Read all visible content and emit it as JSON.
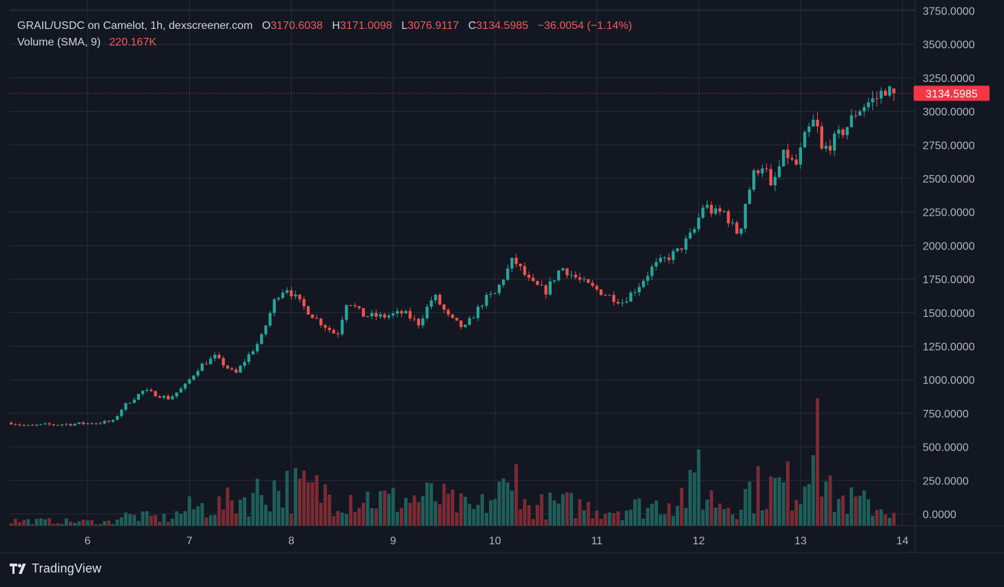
{
  "header": {
    "symbol": "GRAIL/USDC on Camelot, 1h, dexscreener.com",
    "ohlc": [
      {
        "key": "O",
        "value": "3170.6038"
      },
      {
        "key": "H",
        "value": "3171.0098"
      },
      {
        "key": "L",
        "value": "3076.9117"
      },
      {
        "key": "C",
        "value": "3134.5985"
      }
    ],
    "change": "−36.0054 (−1.14%)",
    "volume_label": "Volume (SMA, 9)",
    "volume_value": "220.167K"
  },
  "colors": {
    "background": "#131722",
    "grid": "#2a2e39",
    "up": "#26a69a",
    "down": "#ef5350",
    "up_volume": "#1f5f5a",
    "down_volume": "#7a2b33",
    "last_price": "#f23645"
  },
  "branding": {
    "logo_icon": "tradingview-logo-icon",
    "name": "TradingView"
  },
  "chart_data": {
    "type": "candlestick",
    "interval": "1h",
    "price_axis": {
      "ticks": [
        "3750.0000",
        "3500.0000",
        "3250.0000",
        "3000.0000",
        "2750.0000",
        "2500.0000",
        "2250.0000",
        "2000.0000",
        "1750.0000",
        "1500.0000",
        "1250.0000",
        "1000.0000",
        "750.0000",
        "500.0000",
        "250.0000",
        "0.0000"
      ],
      "range": [
        0,
        3750
      ]
    },
    "time_axis": {
      "ticks": [
        "6",
        "7",
        "8",
        "9",
        "10",
        "11",
        "12",
        "13",
        "14"
      ],
      "start_day": 5.25,
      "end_day": 13.9
    },
    "last_price": {
      "value": 3134.5985,
      "label": "3134.5985"
    },
    "volume_sma_length": 9,
    "price_anchors": [
      [
        5.25,
        680
      ],
      [
        5.4,
        655
      ],
      [
        5.6,
        665
      ],
      [
        5.85,
        670
      ],
      [
        6.1,
        680
      ],
      [
        6.25,
        690
      ],
      [
        6.35,
        800
      ],
      [
        6.55,
        920
      ],
      [
        6.8,
        860
      ],
      [
        6.95,
        950
      ],
      [
        7.1,
        1100
      ],
      [
        7.25,
        1170
      ],
      [
        7.45,
        1040
      ],
      [
        7.55,
        1150
      ],
      [
        7.7,
        1300
      ],
      [
        7.85,
        1620
      ],
      [
        7.95,
        1690
      ],
      [
        8.1,
        1560
      ],
      [
        8.25,
        1450
      ],
      [
        8.45,
        1330
      ],
      [
        8.55,
        1600
      ],
      [
        8.7,
        1480
      ],
      [
        8.9,
        1470
      ],
      [
        9.1,
        1500
      ],
      [
        9.25,
        1420
      ],
      [
        9.4,
        1630
      ],
      [
        9.55,
        1460
      ],
      [
        9.7,
        1380
      ],
      [
        9.9,
        1600
      ],
      [
        10.0,
        1640
      ],
      [
        10.18,
        1900
      ],
      [
        10.35,
        1720
      ],
      [
        10.5,
        1660
      ],
      [
        10.65,
        1840
      ],
      [
        10.85,
        1730
      ],
      [
        11.05,
        1650
      ],
      [
        11.25,
        1580
      ],
      [
        11.4,
        1690
      ],
      [
        11.55,
        1840
      ],
      [
        11.8,
        1960
      ],
      [
        11.95,
        2100
      ],
      [
        12.05,
        2310
      ],
      [
        12.15,
        2240
      ],
      [
        12.25,
        2250
      ],
      [
        12.35,
        2120
      ],
      [
        12.4,
        2080
      ],
      [
        12.45,
        2300
      ],
      [
        12.55,
        2550
      ],
      [
        12.65,
        2620
      ],
      [
        12.7,
        2400
      ],
      [
        12.85,
        2700
      ],
      [
        12.95,
        2580
      ],
      [
        13.05,
        2820
      ],
      [
        13.15,
        2950
      ],
      [
        13.2,
        2700
      ],
      [
        13.3,
        2760
      ],
      [
        13.45,
        2880
      ],
      [
        13.55,
        3000
      ],
      [
        13.65,
        3060
      ],
      [
        13.75,
        3100
      ],
      [
        13.83,
        3170
      ],
      [
        13.9,
        3134.6
      ]
    ],
    "volume_profile": [
      [
        5.25,
        40
      ],
      [
        6.25,
        30
      ],
      [
        6.3,
        80
      ],
      [
        6.8,
        60
      ],
      [
        7.0,
        140
      ],
      [
        7.3,
        160
      ],
      [
        7.85,
        310
      ],
      [
        8.4,
        260
      ],
      [
        9.0,
        200
      ],
      [
        9.4,
        230
      ],
      [
        9.8,
        120
      ],
      [
        10.1,
        290
      ],
      [
        10.3,
        150
      ],
      [
        10.7,
        170
      ],
      [
        11.1,
        130
      ],
      [
        11.55,
        160
      ],
      [
        11.95,
        280
      ],
      [
        12.1,
        230
      ],
      [
        12.35,
        150
      ],
      [
        12.5,
        290
      ],
      [
        12.7,
        300
      ],
      [
        13.0,
        330
      ],
      [
        13.17,
        560
      ],
      [
        13.3,
        220
      ],
      [
        13.6,
        180
      ],
      [
        13.9,
        120
      ]
    ],
    "volume_spikes": [
      {
        "day": 13.17,
        "volume": 870
      },
      {
        "day": 11.99,
        "volume": 520
      },
      {
        "day": 13.14,
        "volume": 480
      },
      {
        "day": 10.2,
        "volume": 400
      },
      {
        "day": 10.22,
        "volume": 420
      }
    ]
  }
}
